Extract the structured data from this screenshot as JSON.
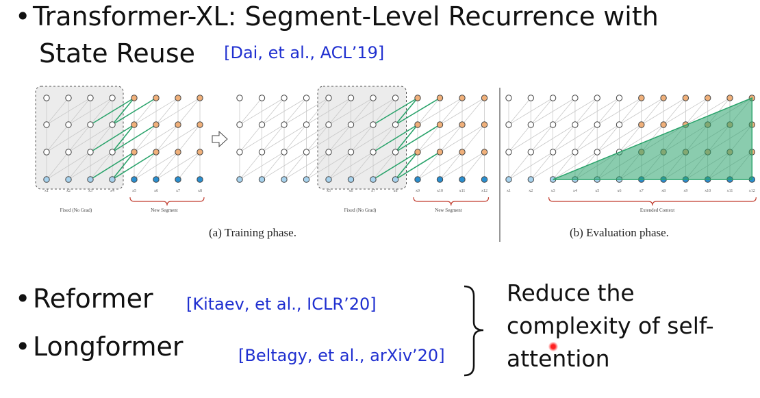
{
  "slide": {
    "bullet1": {
      "line1": "Transformer-XL: Segment-Level Recurrence with",
      "line2": "State Reuse",
      "cite": "[Dai, et al., ACL’19]"
    },
    "figure": {
      "training": {
        "caption": "(a) Training phase.",
        "fixed_label": "Fixed (No Grad)",
        "new_label": "New Segment",
        "tokens_a": [
          "x1",
          "x2",
          "x3",
          "x4",
          "x5",
          "x6",
          "x7",
          "x8"
        ],
        "tokens_b": [
          "x5",
          "x6",
          "x7",
          "x8",
          "x9",
          "x10",
          "x11",
          "x12"
        ]
      },
      "evaluation": {
        "caption": "(b) Evaluation phase.",
        "context_label": "Extended Context",
        "tokens": [
          "x1",
          "x2",
          "x3",
          "x4",
          "x5",
          "x6",
          "x7",
          "x8",
          "x9",
          "x10",
          "x11",
          "x12"
        ]
      },
      "colors": {
        "orange": "#f0b07a",
        "blue": "#2a8fd0",
        "light_blue": "#a8d3ee",
        "green": "#2aa36b",
        "bracket": "#c0392b"
      }
    },
    "bullet2": {
      "label": "Reformer",
      "cite": "[Kitaev, et al., ICLR’20]"
    },
    "bullet3": {
      "label": "Longformer",
      "cite": "[Beltagy, et al., arXiv’20]"
    },
    "side_note": {
      "line1": "Reduce the",
      "line2": "complexity of self-",
      "line3": "attention"
    }
  }
}
